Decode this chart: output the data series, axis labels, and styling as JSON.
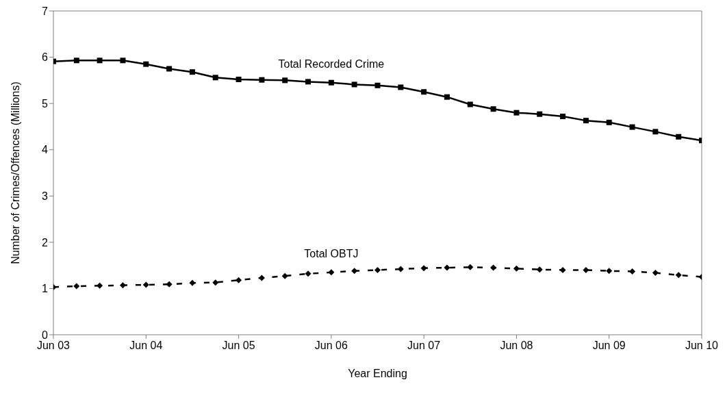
{
  "chart_data": {
    "type": "line",
    "xlabel": "Year Ending",
    "ylabel": "Number of Crimes/Offences (Millions)",
    "x": [
      "2003-06",
      "2003-09",
      "2003-12",
      "2004-03",
      "2004-06",
      "2004-09",
      "2004-12",
      "2005-03",
      "2005-06",
      "2005-09",
      "2005-12",
      "2006-03",
      "2006-06",
      "2006-09",
      "2006-12",
      "2007-03",
      "2007-06",
      "2007-09",
      "2007-12",
      "2008-03",
      "2008-06",
      "2008-09",
      "2008-12",
      "2009-03",
      "2009-06",
      "2009-09",
      "2009-12",
      "2010-03",
      "2010-06"
    ],
    "series": [
      {
        "name": "Total Recorded Crime",
        "color": "#000000",
        "marker": "square",
        "line_style": "solid",
        "values": [
          5.91,
          5.93,
          5.93,
          5.93,
          5.85,
          5.75,
          5.68,
          5.56,
          5.52,
          5.51,
          5.5,
          5.47,
          5.45,
          5.41,
          5.39,
          5.35,
          5.25,
          5.14,
          4.98,
          4.88,
          4.8,
          4.77,
          4.72,
          4.63,
          4.59,
          4.49,
          4.39,
          4.28,
          4.2
        ]
      },
      {
        "name": "Total OBTJ",
        "color": "#000000",
        "marker": "diamond",
        "line_style": "dashed",
        "values": [
          1.03,
          1.05,
          1.06,
          1.07,
          1.08,
          1.09,
          1.12,
          1.13,
          1.18,
          1.23,
          1.27,
          1.32,
          1.35,
          1.38,
          1.4,
          1.42,
          1.44,
          1.45,
          1.46,
          1.45,
          1.43,
          1.41,
          1.4,
          1.4,
          1.38,
          1.37,
          1.34,
          1.29,
          1.25
        ]
      }
    ],
    "xlim": [
      "2003-06",
      "2010-06"
    ],
    "xticks": [
      {
        "value": "2003-06",
        "label": "Jun 03"
      },
      {
        "value": "2004-06",
        "label": "Jun 04"
      },
      {
        "value": "2005-06",
        "label": "Jun 05"
      },
      {
        "value": "2006-06",
        "label": "Jun 06"
      },
      {
        "value": "2007-06",
        "label": "Jun 07"
      },
      {
        "value": "2008-06",
        "label": "Jun 08"
      },
      {
        "value": "2009-06",
        "label": "Jun 09"
      },
      {
        "value": "2010-06",
        "label": "Jun 10"
      }
    ],
    "ylim": [
      0,
      7
    ],
    "yticks": [
      0,
      1,
      2,
      3,
      4,
      5,
      6,
      7
    ],
    "grid": false,
    "legend": false
  }
}
